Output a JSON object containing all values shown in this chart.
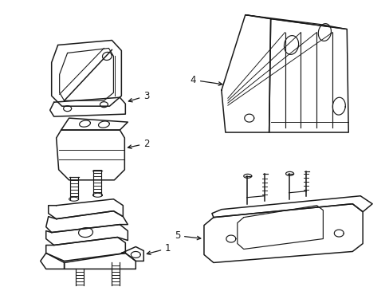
{
  "background_color": "#ffffff",
  "line_color": "#1a1a1a",
  "figure_width": 4.89,
  "figure_height": 3.6,
  "dpi": 100,
  "xlim": [
    0,
    489
  ],
  "ylim": [
    0,
    360
  ]
}
